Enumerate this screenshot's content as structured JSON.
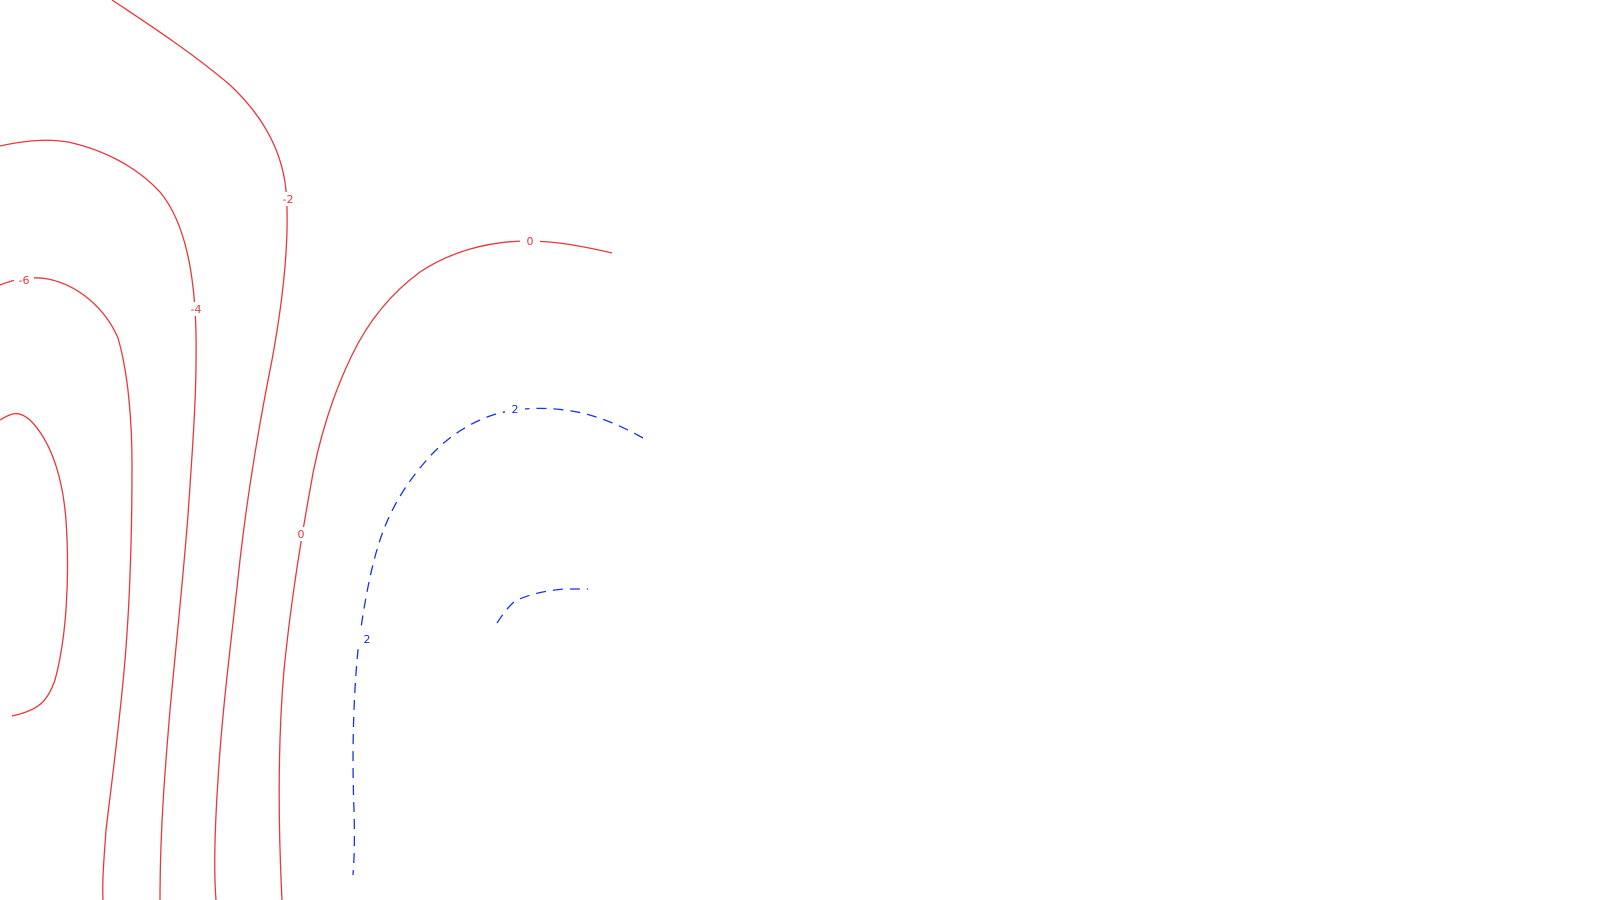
{
  "chart_data": {
    "type": "contour",
    "title": "",
    "xlabel": "",
    "ylabel": "",
    "grid": false,
    "colors": {
      "negative_and_zero": "#e8383d",
      "positive": "#1a32e6",
      "background": "#ffffff"
    },
    "line_style": {
      "negative_and_zero": "solid",
      "positive": "dashed"
    },
    "levels": [
      {
        "value": -6,
        "label": "-6"
      },
      {
        "value": -4,
        "label": "-4"
      },
      {
        "value": -2,
        "label": "-2"
      },
      {
        "value": 0,
        "label": "0"
      },
      {
        "value": 2,
        "label": "2"
      }
    ]
  }
}
